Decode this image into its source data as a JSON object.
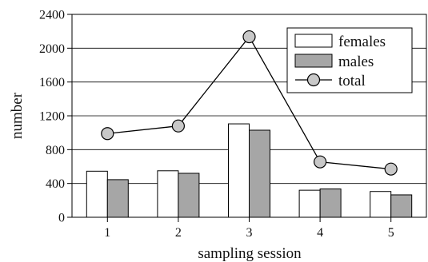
{
  "chart_data": {
    "type": "bar",
    "title": "",
    "xlabel": "sampling session",
    "ylabel": "number",
    "categories": [
      "1",
      "2",
      "3",
      "4",
      "5"
    ],
    "ylim": [
      0,
      2400
    ],
    "yticks": [
      0,
      400,
      800,
      1200,
      1600,
      2000,
      2400
    ],
    "grid": true,
    "legend_position": "top-right",
    "series": [
      {
        "name": "females",
        "kind": "bar",
        "color": "#ffffff",
        "values": [
          545,
          550,
          1105,
          320,
          305
        ]
      },
      {
        "name": "males",
        "kind": "bar",
        "color": "#a6a6a6",
        "values": [
          445,
          520,
          1030,
          335,
          265
        ]
      },
      {
        "name": "total",
        "kind": "line",
        "color": "#c8c8c8",
        "values": [
          990,
          1080,
          2135,
          655,
          570
        ]
      }
    ]
  }
}
